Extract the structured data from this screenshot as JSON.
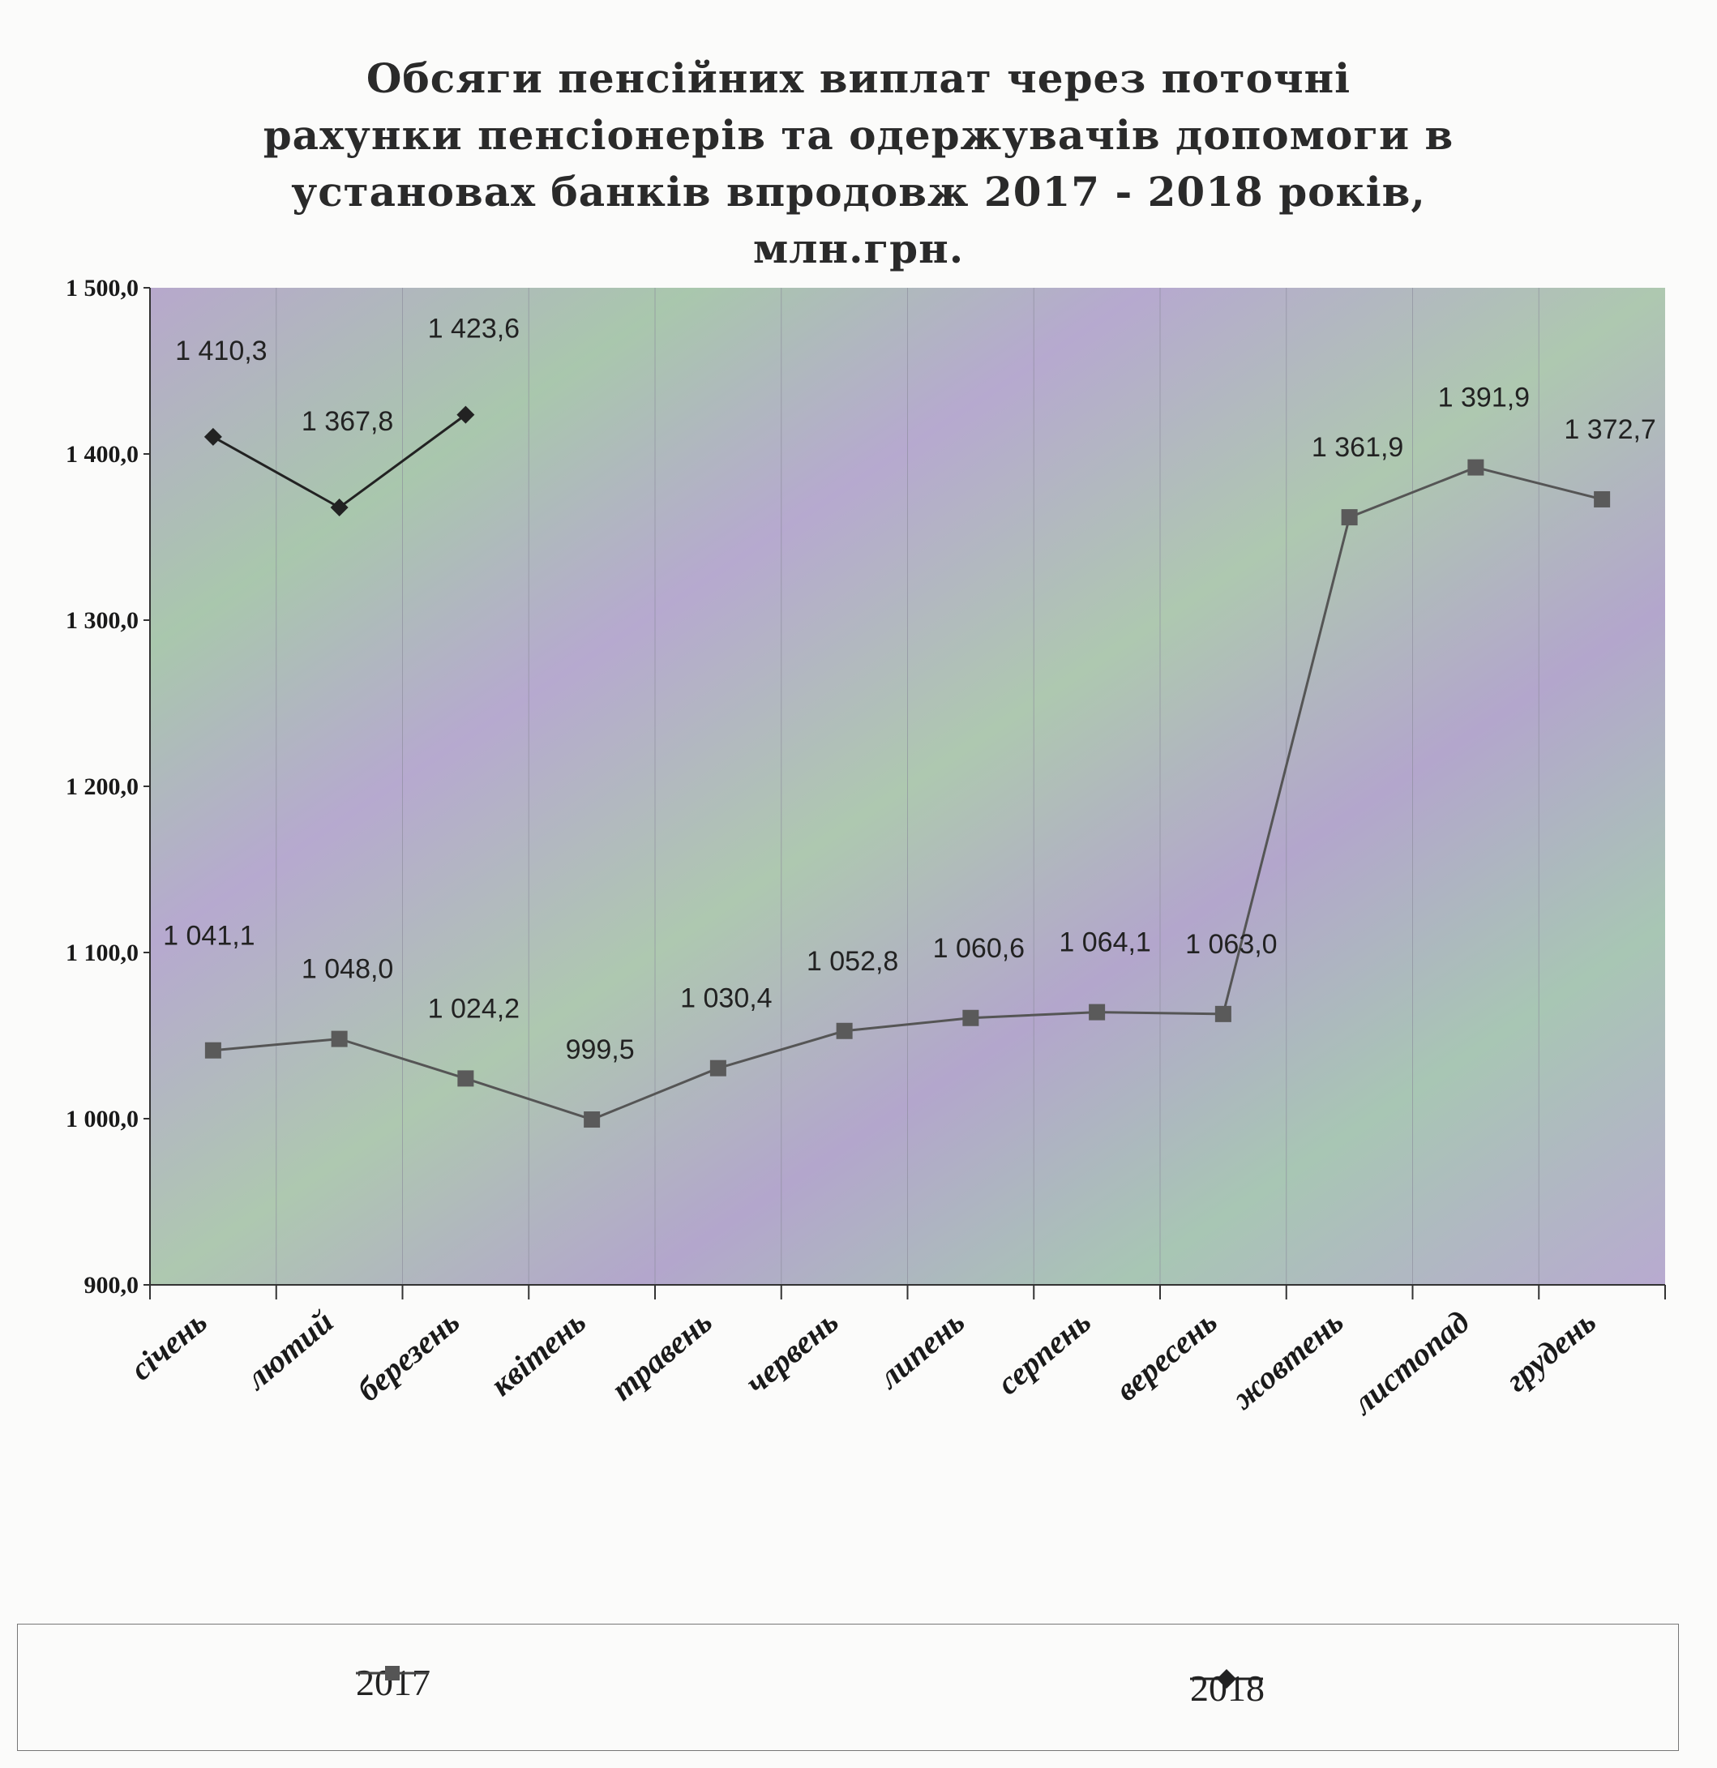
{
  "title_lines": [
    "Обсяги пенсійних виплат через поточні",
    "рахунки пенсіонерів та одержувачів допомоги в",
    "установах банків впродовж 2017 - 2018 років,",
    "млн.грн."
  ],
  "chart_data": {
    "type": "line",
    "title": "Обсяги пенсійних виплат через поточні рахунки пенсіонерів та одержувачів допомоги в установах банків впродовж 2017 - 2018 років, млн.грн.",
    "categories": [
      "січень",
      "лютий",
      "березень",
      "квітень",
      "травень",
      "червень",
      "липень",
      "серпень",
      "вересень",
      "жовтень",
      "листопад",
      "грудень"
    ],
    "ylim": [
      900,
      1500
    ],
    "yticks": [
      900,
      1000,
      1100,
      1200,
      1300,
      1400,
      1500
    ],
    "ytick_labels": [
      "900,0",
      "1 000,0",
      "1 100,0",
      "1 200,0",
      "1 300,0",
      "1 400,0",
      "1 500,0"
    ],
    "legend_position": "bottom",
    "series": [
      {
        "name": "2017",
        "marker": "square",
        "color": "#555555",
        "values": [
          1041.1,
          1048.0,
          1024.2,
          999.5,
          1030.4,
          1052.8,
          1060.6,
          1064.1,
          1063.0,
          1361.9,
          1391.9,
          1372.7
        ],
        "labels": [
          "1 041,1",
          "1 048,0",
          "1 024,2",
          "999,5",
          "1 030,4",
          "1 052,8",
          "1 060,6",
          "1 064,1",
          "1 063,0",
          "1 361,9",
          "1 391,9",
          "1 372,7"
        ]
      },
      {
        "name": "2018",
        "marker": "diamond",
        "color": "#222222",
        "values": [
          1410.3,
          1367.8,
          1423.6,
          null,
          null,
          null,
          null,
          null,
          null,
          null,
          null,
          null
        ],
        "labels": [
          "1 410,3",
          "1 367,8",
          "1 423,6"
        ]
      }
    ]
  }
}
